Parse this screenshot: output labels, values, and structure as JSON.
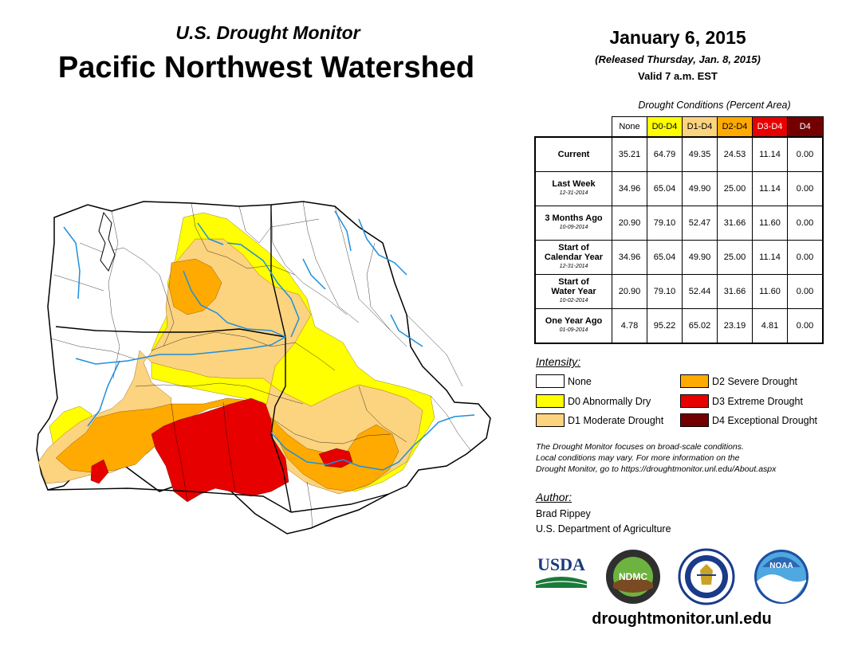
{
  "header": {
    "subtitle": "U.S. Drought Monitor",
    "title": "Pacific Northwest Watershed",
    "date": "January 6, 2015",
    "released": "(Released Thursday, Jan. 8, 2015)",
    "valid": "Valid 7 a.m. EST"
  },
  "colors": {
    "none": "#ffffff",
    "d0": "#ffff00",
    "d1": "#fcd37f",
    "d2": "#ffaa00",
    "d3": "#e60000",
    "d4": "#730000",
    "rivers": "#1f8fdc"
  },
  "table": {
    "title": "Drought Conditions (Percent Area)",
    "columns": [
      "None",
      "D0-D4",
      "D1-D4",
      "D2-D4",
      "D3-D4",
      "D4"
    ],
    "rows": [
      {
        "label": "Current",
        "label2": "",
        "date": "",
        "values": [
          "35.21",
          "64.79",
          "49.35",
          "24.53",
          "11.14",
          "0.00"
        ]
      },
      {
        "label": "Last Week",
        "label2": "",
        "date": "12-31-2014",
        "values": [
          "34.96",
          "65.04",
          "49.90",
          "25.00",
          "11.14",
          "0.00"
        ]
      },
      {
        "label": "3 Months Ago",
        "label2": "",
        "date": "10-09-2014",
        "values": [
          "20.90",
          "79.10",
          "52.47",
          "31.66",
          "11.60",
          "0.00"
        ]
      },
      {
        "label": "Start of",
        "label2": "Calendar Year",
        "date": "12-31-2014",
        "values": [
          "34.96",
          "65.04",
          "49.90",
          "25.00",
          "11.14",
          "0.00"
        ]
      },
      {
        "label": "Start of",
        "label2": "Water Year",
        "date": "10-02-2014",
        "values": [
          "20.90",
          "79.10",
          "52.44",
          "31.66",
          "11.60",
          "0.00"
        ]
      },
      {
        "label": "One Year Ago",
        "label2": "",
        "date": "01-09-2014",
        "values": [
          "4.78",
          "95.22",
          "65.02",
          "23.19",
          "4.81",
          "0.00"
        ]
      }
    ]
  },
  "legend": {
    "title": "Intensity:",
    "items": [
      {
        "key": "none",
        "label": "None"
      },
      {
        "key": "d0",
        "label": "D0 Abnormally Dry"
      },
      {
        "key": "d1",
        "label": "D1 Moderate Drought"
      },
      {
        "key": "d2",
        "label": "D2 Severe Drought"
      },
      {
        "key": "d3",
        "label": "D3 Extreme Drought"
      },
      {
        "key": "d4",
        "label": "D4 Exceptional Drought"
      }
    ]
  },
  "note": {
    "line1": "The Drought Monitor focuses on broad-scale conditions.",
    "line2": "Local conditions may vary. For more information on the",
    "line3": "Drought Monitor, go to https://droughtmonitor.unl.edu/About.aspx"
  },
  "author": {
    "title": "Author:",
    "name": "Brad Rippey",
    "org": "U.S. Department of Agriculture"
  },
  "logos": {
    "usda": "USDA",
    "ndmc": "NDMC",
    "noaa": "NOAA"
  },
  "footer": {
    "url": "droughtmonitor.unl.edu"
  }
}
